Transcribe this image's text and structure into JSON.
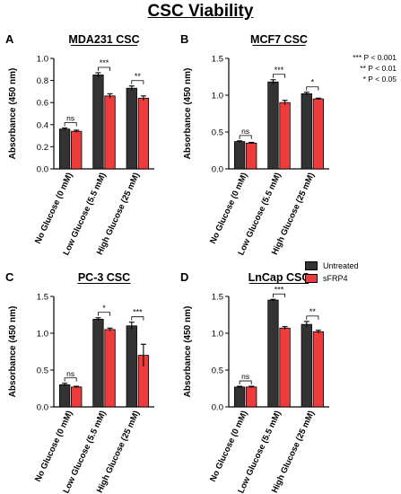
{
  "title": "CSC Viability",
  "significance_key": [
    "*** P < 0.001",
    "** P < 0.01",
    "* P < 0.05"
  ],
  "legend": [
    "Untreated",
    "sFRP4"
  ],
  "colors": {
    "untreated": "#333333",
    "sfrp4": "#ee3b3b",
    "axis": "#000000"
  },
  "chart_data": [
    {
      "panel": "A",
      "type": "bar",
      "title": "MDA231 CSC",
      "ylabel": "Absorbance (450 nm)",
      "categories": [
        "No Glucose (0 mM)",
        "Low Glucose (5.5 mM)",
        "High Glucose (25 mM)"
      ],
      "ylim": [
        0,
        1.0
      ],
      "yticks": [
        0,
        0.2,
        0.4,
        0.6,
        0.8,
        1.0
      ],
      "ytick_labels": [
        "0.0",
        "0.2",
        "0.4",
        "0.6",
        "0.8",
        "1.0"
      ],
      "series": [
        {
          "name": "Untreated",
          "values": [
            0.36,
            0.85,
            0.73
          ],
          "errors": [
            0.01,
            0.02,
            0.02
          ]
        },
        {
          "name": "sFRP4",
          "values": [
            0.34,
            0.66,
            0.64
          ],
          "errors": [
            0.01,
            0.02,
            0.02
          ]
        }
      ],
      "significance": [
        "ns",
        "***",
        "**"
      ]
    },
    {
      "panel": "B",
      "type": "bar",
      "title": "MCF7 CSC",
      "ylabel": "Absorbance (450 nm)",
      "categories": [
        "No Glucose (0 mM)",
        "Low Glucose (5.5 mM)",
        "High Glucose (25 mM)"
      ],
      "ylim": [
        0,
        1.5
      ],
      "yticks": [
        0,
        0.5,
        1.0,
        1.5
      ],
      "ytick_labels": [
        "0.0",
        "0.5",
        "1.0",
        "1.5"
      ],
      "series": [
        {
          "name": "Untreated",
          "values": [
            0.37,
            1.18,
            1.02
          ],
          "errors": [
            0.01,
            0.03,
            0.02
          ]
        },
        {
          "name": "sFRP4",
          "values": [
            0.35,
            0.9,
            0.95
          ],
          "errors": [
            0.01,
            0.03,
            0.01
          ]
        }
      ],
      "significance": [
        "ns",
        "***",
        "*"
      ]
    },
    {
      "panel": "C",
      "type": "bar",
      "title": "PC-3 CSC",
      "ylabel": "Absorbance (450 nm)",
      "categories": [
        "No Glucose (0 mM)",
        "Low Glucose (5.5 mM)",
        "High Glucose (25 mM)"
      ],
      "ylim": [
        0,
        1.5
      ],
      "yticks": [
        0,
        0.5,
        1.0,
        1.5
      ],
      "ytick_labels": [
        "0.0",
        "0.5",
        "1.0",
        "1.5"
      ],
      "series": [
        {
          "name": "Untreated",
          "values": [
            0.3,
            1.19,
            1.1
          ],
          "errors": [
            0.02,
            0.02,
            0.05
          ]
        },
        {
          "name": "sFRP4",
          "values": [
            0.27,
            1.05,
            0.7
          ],
          "errors": [
            0.01,
            0.02,
            0.15
          ]
        }
      ],
      "significance": [
        "ns",
        "*",
        "***"
      ]
    },
    {
      "panel": "D",
      "type": "bar",
      "title": "LnCap CSC",
      "ylabel": "Absorbance (450 nm)",
      "categories": [
        "No Glucose (0 mM)",
        "Low Glucose (5.5 mM)",
        "High Glucose (25 mM)"
      ],
      "ylim": [
        0,
        1.5
      ],
      "yticks": [
        0,
        0.5,
        1.0,
        1.5
      ],
      "ytick_labels": [
        "0.0",
        "0.5",
        "1.0",
        "1.5"
      ],
      "series": [
        {
          "name": "Untreated",
          "values": [
            0.27,
            1.45,
            1.12
          ],
          "errors": [
            0.01,
            0.01,
            0.04
          ]
        },
        {
          "name": "sFRP4",
          "values": [
            0.27,
            1.07,
            1.02
          ],
          "errors": [
            0.01,
            0.02,
            0.02
          ]
        }
      ],
      "significance": [
        "ns",
        "***",
        "**"
      ]
    }
  ]
}
